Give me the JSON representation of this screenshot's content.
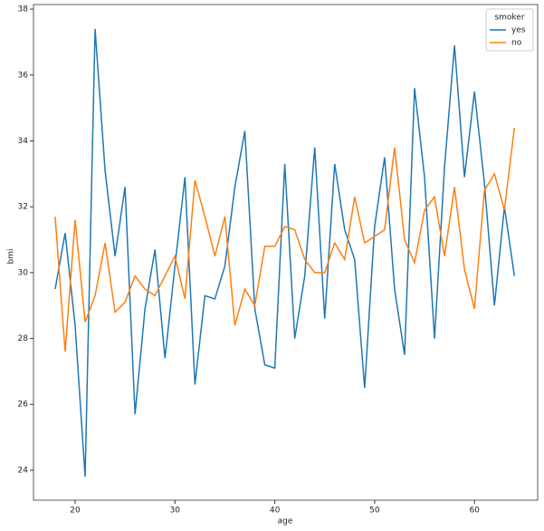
{
  "chart_data": {
    "type": "line",
    "x_label": "age",
    "y_label": "bmi",
    "x": [
      18,
      19,
      20,
      21,
      22,
      23,
      24,
      25,
      26,
      27,
      28,
      29,
      30,
      31,
      32,
      33,
      34,
      35,
      36,
      37,
      38,
      39,
      40,
      41,
      42,
      43,
      44,
      45,
      46,
      47,
      48,
      49,
      50,
      51,
      52,
      53,
      54,
      55,
      56,
      57,
      58,
      59,
      60,
      61,
      62,
      63,
      64
    ],
    "series": [
      {
        "name": "yes",
        "color": "#1f77b4",
        "values": [
          29.5,
          31.2,
          28.4,
          23.8,
          37.4,
          33.1,
          30.5,
          32.6,
          25.7,
          28.9,
          30.7,
          27.4,
          30.2,
          32.9,
          26.6,
          29.3,
          29.2,
          30.2,
          32.6,
          34.3,
          28.9,
          27.2,
          27.1,
          33.3,
          28.0,
          29.9,
          33.8,
          28.6,
          33.3,
          31.3,
          30.4,
          26.5,
          31.4,
          33.5,
          29.5,
          27.5,
          35.6,
          32.9,
          28.0,
          33.2,
          36.9,
          32.9,
          35.5,
          32.7,
          29.0,
          32.0,
          29.9
        ]
      },
      {
        "name": "no",
        "color": "#ff7f0e",
        "values": [
          31.7,
          27.6,
          31.6,
          28.5,
          29.3,
          30.9,
          28.8,
          29.1,
          29.9,
          29.5,
          29.3,
          29.9,
          30.5,
          29.2,
          32.8,
          31.7,
          30.5,
          31.7,
          28.4,
          29.5,
          29.0,
          30.8,
          30.8,
          31.4,
          31.3,
          30.4,
          30.0,
          30.0,
          30.9,
          30.4,
          32.3,
          30.9,
          31.1,
          31.3,
          33.8,
          31.0,
          30.3,
          31.9,
          32.3,
          30.5,
          32.6,
          30.1,
          28.9,
          32.5,
          33.0,
          31.9,
          34.4
        ]
      }
    ],
    "legend_title": "smoker",
    "legend_position": "upper right",
    "xlim": [
      15.83,
      66.33
    ],
    "xticks": [
      20,
      30,
      40,
      50,
      60
    ],
    "ylim": [
      23.09,
      38.14
    ],
    "yticks": [
      24,
      26,
      28,
      30,
      32,
      34,
      36,
      38
    ]
  }
}
